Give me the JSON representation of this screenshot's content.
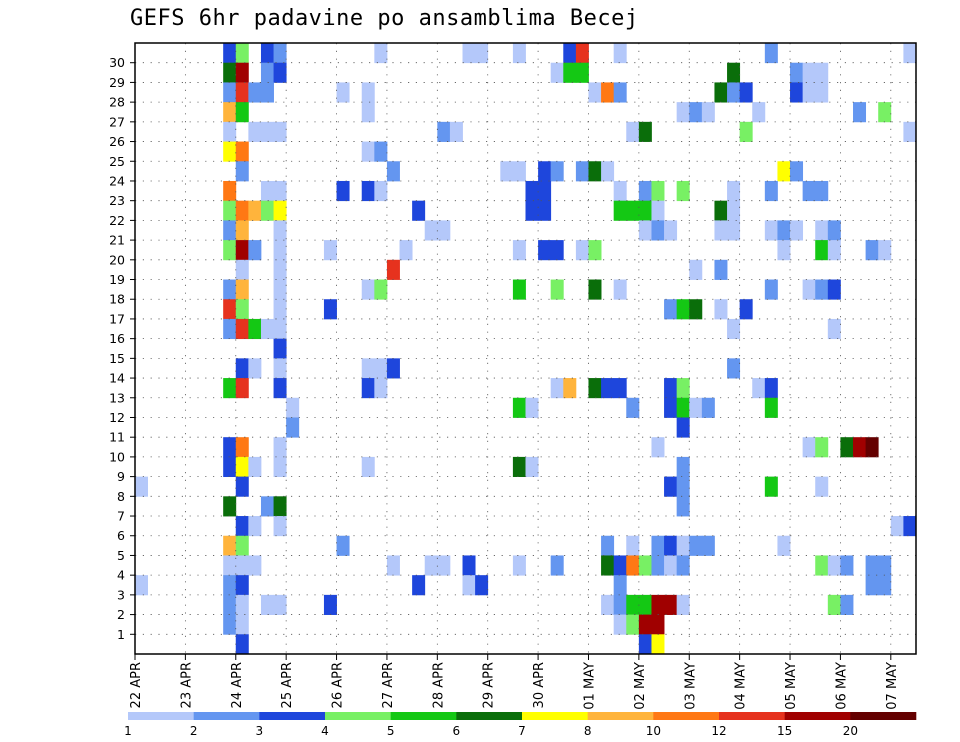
{
  "title": "GEFS 6hr padavine po ansamblima Becej",
  "chart_data": {
    "type": "heatmap",
    "title": "GEFS 6hr padavine po ansamblima Becej",
    "x_tick_labels": [
      "22 APR",
      "23 APR",
      "24 APR",
      "25 APR",
      "26 APR",
      "27 APR",
      "28 APR",
      "29 APR",
      "30 APR",
      "01 MAY",
      "02 MAY",
      "03 MAY",
      "04 MAY",
      "05 MAY",
      "06 MAY",
      "07 MAY"
    ],
    "y_tick_labels": [
      "1",
      "2",
      "3",
      "4",
      "5",
      "6",
      "7",
      "8",
      "9",
      "10",
      "11",
      "12",
      "13",
      "14",
      "15",
      "16",
      "17",
      "18",
      "19",
      "20",
      "21",
      "22",
      "23",
      "24",
      "25",
      "26",
      "27",
      "28",
      "29",
      "30"
    ],
    "x_steps_per_day": 4,
    "x_range_steps": [
      0,
      61
    ],
    "ensemble_members": 30,
    "grid": true,
    "legend_placement": "bottom",
    "colorbar": {
      "labels": [
        "1",
        "2",
        "3",
        "4",
        "5",
        "6",
        "7",
        "8",
        "10",
        "12",
        "15",
        "20"
      ],
      "colors": [
        "#b4c8fa",
        "#6496f0",
        "#1e46dc",
        "#78f064",
        "#14c814",
        "#0a6e0a",
        "#ffff00",
        "#ffb43c",
        "#ff7814",
        "#e6321e",
        "#a00000",
        "#640000"
      ]
    },
    "cells": [
      [
        7,
        30,
        2
      ],
      [
        8,
        30,
        3
      ],
      [
        10,
        30,
        2
      ],
      [
        11,
        30,
        1
      ],
      [
        19,
        30,
        0
      ],
      [
        26,
        30,
        0
      ],
      [
        27,
        30,
        0
      ],
      [
        30,
        30,
        0
      ],
      [
        34,
        30,
        2
      ],
      [
        35,
        30,
        9
      ],
      [
        38,
        30,
        0
      ],
      [
        50,
        30,
        1
      ],
      [
        61,
        30,
        0
      ],
      [
        7,
        29,
        5
      ],
      [
        8,
        29,
        10
      ],
      [
        10,
        29,
        1
      ],
      [
        11,
        29,
        2
      ],
      [
        33,
        29,
        0
      ],
      [
        34,
        29,
        4
      ],
      [
        35,
        29,
        4
      ],
      [
        47,
        29,
        5
      ],
      [
        52,
        29,
        1
      ],
      [
        53,
        29,
        0
      ],
      [
        54,
        29,
        0
      ],
      [
        7,
        28,
        1
      ],
      [
        8,
        28,
        9
      ],
      [
        9,
        28,
        1
      ],
      [
        10,
        28,
        1
      ],
      [
        16,
        28,
        0
      ],
      [
        18,
        28,
        0
      ],
      [
        36,
        28,
        0
      ],
      [
        37,
        28,
        8
      ],
      [
        38,
        28,
        1
      ],
      [
        46,
        28,
        5
      ],
      [
        47,
        28,
        1
      ],
      [
        48,
        28,
        2
      ],
      [
        52,
        28,
        2
      ],
      [
        53,
        28,
        0
      ],
      [
        54,
        28,
        0
      ],
      [
        7,
        27,
        7
      ],
      [
        8,
        27,
        4
      ],
      [
        18,
        27,
        0
      ],
      [
        43,
        27,
        0
      ],
      [
        44,
        27,
        1
      ],
      [
        45,
        27,
        0
      ],
      [
        49,
        27,
        0
      ],
      [
        57,
        27,
        1
      ],
      [
        59,
        27,
        3
      ],
      [
        7,
        26,
        0
      ],
      [
        9,
        26,
        0
      ],
      [
        10,
        26,
        0
      ],
      [
        11,
        26,
        0
      ],
      [
        24,
        26,
        1
      ],
      [
        25,
        26,
        0
      ],
      [
        39,
        26,
        0
      ],
      [
        40,
        26,
        5
      ],
      [
        48,
        26,
        3
      ],
      [
        61,
        26,
        0
      ],
      [
        7,
        25,
        6
      ],
      [
        8,
        25,
        8
      ],
      [
        18,
        25,
        0
      ],
      [
        19,
        25,
        1
      ],
      [
        8,
        24,
        1
      ],
      [
        20,
        24,
        1
      ],
      [
        29,
        24,
        0
      ],
      [
        30,
        24,
        0
      ],
      [
        32,
        24,
        2
      ],
      [
        33,
        24,
        1
      ],
      [
        35,
        24,
        1
      ],
      [
        36,
        24,
        5
      ],
      [
        37,
        24,
        0
      ],
      [
        51,
        24,
        6
      ],
      [
        52,
        24,
        1
      ],
      [
        7,
        23,
        8
      ],
      [
        10,
        23,
        0
      ],
      [
        11,
        23,
        0
      ],
      [
        16,
        23,
        2
      ],
      [
        18,
        23,
        2
      ],
      [
        19,
        23,
        0
      ],
      [
        31,
        23,
        2
      ],
      [
        32,
        23,
        2
      ],
      [
        38,
        23,
        0
      ],
      [
        40,
        23,
        1
      ],
      [
        41,
        23,
        3
      ],
      [
        43,
        23,
        3
      ],
      [
        47,
        23,
        0
      ],
      [
        50,
        23,
        1
      ],
      [
        53,
        23,
        1
      ],
      [
        54,
        23,
        1
      ],
      [
        7,
        22,
        3
      ],
      [
        8,
        22,
        8
      ],
      [
        9,
        22,
        7
      ],
      [
        10,
        22,
        3
      ],
      [
        11,
        22,
        6
      ],
      [
        22,
        22,
        2
      ],
      [
        31,
        22,
        2
      ],
      [
        32,
        22,
        2
      ],
      [
        38,
        22,
        4
      ],
      [
        39,
        22,
        4
      ],
      [
        40,
        22,
        4
      ],
      [
        41,
        22,
        0
      ],
      [
        46,
        22,
        5
      ],
      [
        47,
        22,
        0
      ],
      [
        7,
        21,
        1
      ],
      [
        8,
        21,
        7
      ],
      [
        11,
        21,
        0
      ],
      [
        23,
        21,
        0
      ],
      [
        24,
        21,
        0
      ],
      [
        40,
        21,
        0
      ],
      [
        41,
        21,
        1
      ],
      [
        42,
        21,
        0
      ],
      [
        46,
        21,
        0
      ],
      [
        47,
        21,
        0
      ],
      [
        50,
        21,
        0
      ],
      [
        51,
        21,
        1
      ],
      [
        52,
        21,
        0
      ],
      [
        54,
        21,
        0
      ],
      [
        55,
        21,
        1
      ],
      [
        7,
        20,
        3
      ],
      [
        8,
        20,
        10
      ],
      [
        9,
        20,
        1
      ],
      [
        11,
        20,
        0
      ],
      [
        15,
        20,
        0
      ],
      [
        21,
        20,
        0
      ],
      [
        30,
        20,
        0
      ],
      [
        32,
        20,
        2
      ],
      [
        33,
        20,
        2
      ],
      [
        35,
        20,
        0
      ],
      [
        36,
        20,
        3
      ],
      [
        51,
        20,
        0
      ],
      [
        54,
        20,
        4
      ],
      [
        55,
        20,
        0
      ],
      [
        58,
        20,
        1
      ],
      [
        59,
        20,
        0
      ],
      [
        8,
        19,
        0
      ],
      [
        11,
        19,
        0
      ],
      [
        20,
        19,
        9
      ],
      [
        44,
        19,
        0
      ],
      [
        46,
        19,
        1
      ],
      [
        7,
        18,
        1
      ],
      [
        8,
        18,
        7
      ],
      [
        11,
        18,
        0
      ],
      [
        18,
        18,
        0
      ],
      [
        19,
        18,
        3
      ],
      [
        30,
        18,
        4
      ],
      [
        33,
        18,
        3
      ],
      [
        36,
        18,
        5
      ],
      [
        38,
        18,
        0
      ],
      [
        50,
        18,
        1
      ],
      [
        53,
        18,
        0
      ],
      [
        54,
        18,
        1
      ],
      [
        55,
        18,
        2
      ],
      [
        7,
        17,
        9
      ],
      [
        8,
        17,
        3
      ],
      [
        11,
        17,
        0
      ],
      [
        15,
        17,
        2
      ],
      [
        42,
        17,
        1
      ],
      [
        43,
        17,
        4
      ],
      [
        44,
        17,
        5
      ],
      [
        46,
        17,
        0
      ],
      [
        48,
        17,
        2
      ],
      [
        7,
        16,
        1
      ],
      [
        8,
        16,
        9
      ],
      [
        9,
        16,
        4
      ],
      [
        10,
        16,
        0
      ],
      [
        11,
        16,
        0
      ],
      [
        47,
        16,
        0
      ],
      [
        55,
        16,
        0
      ],
      [
        11,
        15,
        2
      ],
      [
        8,
        14,
        2
      ],
      [
        9,
        14,
        0
      ],
      [
        11,
        14,
        0
      ],
      [
        18,
        14,
        0
      ],
      [
        19,
        14,
        0
      ],
      [
        20,
        14,
        2
      ],
      [
        47,
        14,
        1
      ],
      [
        7,
        13,
        4
      ],
      [
        8,
        13,
        9
      ],
      [
        11,
        13,
        2
      ],
      [
        18,
        13,
        2
      ],
      [
        19,
        13,
        0
      ],
      [
        33,
        13,
        0
      ],
      [
        34,
        13,
        7
      ],
      [
        36,
        13,
        5
      ],
      [
        37,
        13,
        2
      ],
      [
        38,
        13,
        2
      ],
      [
        42,
        13,
        2
      ],
      [
        43,
        13,
        3
      ],
      [
        49,
        13,
        0
      ],
      [
        50,
        13,
        2
      ],
      [
        12,
        12,
        0
      ],
      [
        30,
        12,
        4
      ],
      [
        31,
        12,
        0
      ],
      [
        39,
        12,
        1
      ],
      [
        42,
        12,
        2
      ],
      [
        43,
        12,
        4
      ],
      [
        44,
        12,
        0
      ],
      [
        45,
        12,
        1
      ],
      [
        50,
        12,
        4
      ],
      [
        12,
        11,
        1
      ],
      [
        43,
        11,
        2
      ],
      [
        7,
        10,
        2
      ],
      [
        8,
        10,
        8
      ],
      [
        11,
        10,
        0
      ],
      [
        41,
        10,
        0
      ],
      [
        53,
        10,
        0
      ],
      [
        54,
        10,
        3
      ],
      [
        56,
        10,
        5
      ],
      [
        57,
        10,
        10
      ],
      [
        58,
        10,
        11
      ],
      [
        7,
        9,
        2
      ],
      [
        8,
        9,
        6
      ],
      [
        9,
        9,
        0
      ],
      [
        11,
        9,
        0
      ],
      [
        18,
        9,
        0
      ],
      [
        30,
        9,
        5
      ],
      [
        31,
        9,
        0
      ],
      [
        43,
        9,
        1
      ],
      [
        0,
        8,
        0
      ],
      [
        8,
        8,
        2
      ],
      [
        42,
        8,
        2
      ],
      [
        43,
        8,
        1
      ],
      [
        50,
        8,
        4
      ],
      [
        54,
        8,
        0
      ],
      [
        7,
        7,
        5
      ],
      [
        10,
        7,
        1
      ],
      [
        11,
        7,
        5
      ],
      [
        43,
        7,
        1
      ],
      [
        8,
        6,
        2
      ],
      [
        9,
        6,
        0
      ],
      [
        11,
        6,
        0
      ],
      [
        60,
        6,
        0
      ],
      [
        61,
        6,
        2
      ],
      [
        7,
        5,
        7
      ],
      [
        8,
        5,
        3
      ],
      [
        16,
        5,
        1
      ],
      [
        37,
        5,
        1
      ],
      [
        39,
        5,
        0
      ],
      [
        41,
        5,
        1
      ],
      [
        42,
        5,
        2
      ],
      [
        43,
        5,
        0
      ],
      [
        44,
        5,
        1
      ],
      [
        45,
        5,
        1
      ],
      [
        51,
        5,
        0
      ],
      [
        7,
        4,
        0
      ],
      [
        8,
        4,
        0
      ],
      [
        9,
        4,
        0
      ],
      [
        20,
        4,
        0
      ],
      [
        23,
        4,
        0
      ],
      [
        24,
        4,
        0
      ],
      [
        26,
        4,
        2
      ],
      [
        30,
        4,
        0
      ],
      [
        33,
        4,
        1
      ],
      [
        37,
        4,
        5
      ],
      [
        38,
        4,
        2
      ],
      [
        39,
        4,
        8
      ],
      [
        40,
        4,
        3
      ],
      [
        41,
        4,
        1
      ],
      [
        42,
        4,
        0
      ],
      [
        43,
        4,
        1
      ],
      [
        54,
        4,
        3
      ],
      [
        55,
        4,
        0
      ],
      [
        56,
        4,
        1
      ],
      [
        58,
        4,
        1
      ],
      [
        59,
        4,
        1
      ],
      [
        0,
        3,
        0
      ],
      [
        7,
        3,
        1
      ],
      [
        8,
        3,
        2
      ],
      [
        22,
        3,
        2
      ],
      [
        26,
        3,
        0
      ],
      [
        27,
        3,
        2
      ],
      [
        38,
        3,
        1
      ],
      [
        58,
        3,
        1
      ],
      [
        59,
        3,
        1
      ],
      [
        7,
        2,
        1
      ],
      [
        8,
        2,
        0
      ],
      [
        10,
        2,
        0
      ],
      [
        11,
        2,
        0
      ],
      [
        15,
        2,
        2
      ],
      [
        37,
        2,
        0
      ],
      [
        38,
        2,
        1
      ],
      [
        39,
        2,
        4
      ],
      [
        40,
        2,
        4
      ],
      [
        41,
        2,
        10
      ],
      [
        42,
        2,
        10
      ],
      [
        43,
        2,
        0
      ],
      [
        55,
        2,
        3
      ],
      [
        56,
        2,
        1
      ],
      [
        7,
        1,
        1
      ],
      [
        8,
        1,
        0
      ],
      [
        38,
        1,
        0
      ],
      [
        39,
        1,
        3
      ],
      [
        40,
        1,
        10
      ],
      [
        41,
        1,
        10
      ],
      [
        8,
        0,
        2
      ],
      [
        40,
        0,
        2
      ],
      [
        41,
        0,
        6
      ]
    ]
  }
}
